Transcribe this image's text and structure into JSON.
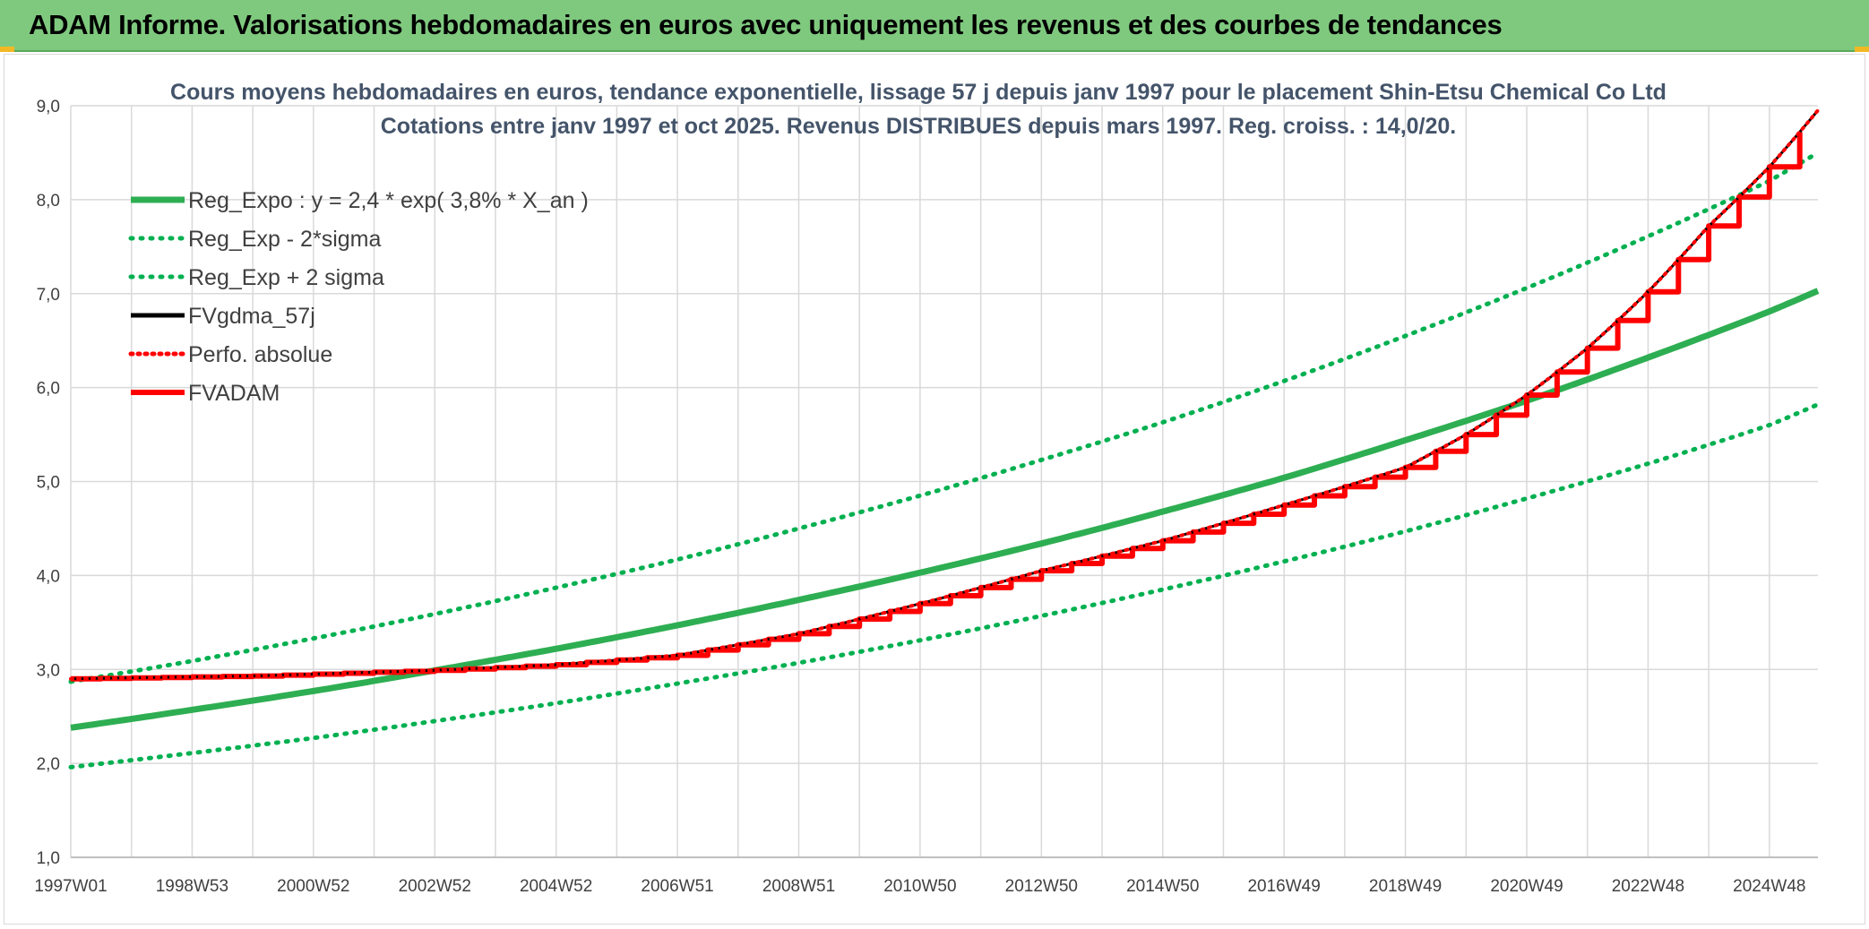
{
  "header": {
    "title": "ADAM Informe. Valorisations hebdomadaires en euros avec uniquement les revenus et des courbes de tendances"
  },
  "colors": {
    "banner": "#7fc97f",
    "green": "#00b050",
    "green_line": "#2eae52",
    "red": "#ff0000",
    "black": "#000000",
    "grid": "#d9d9d9"
  },
  "chart_data": {
    "type": "line",
    "title": "Cours moyens hebdomadaires en euros, tendance exponentielle, lissage 57 j depuis janv 1997 pour le placement Shin-Etsu Chemical Co Ltd",
    "subtitle": "Cotations entre janv 1997 et oct 2025. Revenus DISTRIBUES depuis mars 1997. Reg. croiss. : 14,0/20.",
    "xlabel": "",
    "ylabel": "",
    "ylim": [
      1.0,
      9.0
    ],
    "xlim": [
      1997.0,
      2025.8
    ],
    "yticks": [
      "1,0",
      "2,0",
      "3,0",
      "4,0",
      "5,0",
      "6,0",
      "7,0",
      "8,0",
      "9,0"
    ],
    "xticks": [
      {
        "label": "1997W01",
        "x": 1997.0
      },
      {
        "label": "1998W53",
        "x": 1999.0
      },
      {
        "label": "2000W52",
        "x": 2001.0
      },
      {
        "label": "2002W52",
        "x": 2003.0
      },
      {
        "label": "2004W52",
        "x": 2005.0
      },
      {
        "label": "2006W51",
        "x": 2007.0
      },
      {
        "label": "2008W51",
        "x": 2009.0
      },
      {
        "label": "2010W50",
        "x": 2011.0
      },
      {
        "label": "2012W50",
        "x": 2013.0
      },
      {
        "label": "2014W50",
        "x": 2015.0
      },
      {
        "label": "2016W49",
        "x": 2017.0
      },
      {
        "label": "2018W49",
        "x": 2019.0
      },
      {
        "label": "2020W49",
        "x": 2021.0
      },
      {
        "label": "2022W48",
        "x": 2023.0
      },
      {
        "label": "2024W48",
        "x": 2025.0
      }
    ],
    "grid": true,
    "legend_position": "top-left",
    "series": [
      {
        "name": "Reg_Expo : y = 2,4 * exp( 3,8% *  X_an )",
        "style": "solid",
        "color": "#2eae52",
        "x": [
          1997,
          1999,
          2001,
          2003,
          2005,
          2007,
          2009,
          2011,
          2013,
          2015,
          2017,
          2019,
          2021,
          2023,
          2025,
          2025.8
        ],
        "values": [
          2.38,
          2.57,
          2.77,
          2.99,
          3.22,
          3.47,
          3.74,
          4.03,
          4.34,
          4.68,
          5.04,
          5.44,
          5.86,
          6.32,
          6.81,
          7.03
        ]
      },
      {
        "name": "Reg_Exp - 2*sigma",
        "style": "dotted",
        "color": "#00b050",
        "x": [
          1997,
          1999,
          2001,
          2003,
          2005,
          2007,
          2009,
          2011,
          2013,
          2015,
          2017,
          2019,
          2021,
          2023,
          2025,
          2025.8
        ],
        "values": [
          1.96,
          2.11,
          2.27,
          2.45,
          2.64,
          2.85,
          3.07,
          3.31,
          3.57,
          3.85,
          4.15,
          4.47,
          4.82,
          5.19,
          5.6,
          5.82
        ]
      },
      {
        "name": "Reg_Exp + 2 sigma",
        "style": "dotted",
        "color": "#00b050",
        "x": [
          1997,
          1999,
          2001,
          2003,
          2005,
          2007,
          2009,
          2011,
          2013,
          2015,
          2017,
          2019,
          2021,
          2023,
          2025,
          2025.8
        ],
        "values": [
          2.87,
          3.09,
          3.33,
          3.59,
          3.87,
          4.17,
          4.5,
          4.85,
          5.23,
          5.63,
          6.07,
          6.55,
          7.06,
          7.61,
          8.2,
          8.5
        ]
      },
      {
        "name": "FVgdma_57j",
        "style": "solid",
        "color": "#000000",
        "x": [
          1997,
          2000,
          2003,
          2005,
          2007,
          2009,
          2011,
          2013,
          2015,
          2017,
          2019,
          2020,
          2021,
          2022,
          2023,
          2024,
          2025,
          2025.8
        ],
        "values": [
          2.9,
          2.93,
          2.99,
          3.05,
          3.15,
          3.38,
          3.7,
          4.05,
          4.37,
          4.75,
          5.15,
          5.5,
          5.92,
          6.42,
          7.02,
          7.72,
          8.35,
          8.95
        ]
      },
      {
        "name": "Perfo. absolue",
        "style": "dotted",
        "color": "#ff0000",
        "x": [
          1997,
          2000,
          2003,
          2005,
          2007,
          2009,
          2011,
          2013,
          2015,
          2017,
          2019,
          2020,
          2021,
          2022,
          2023,
          2024,
          2025,
          2025.8
        ],
        "values": [
          2.9,
          2.93,
          2.99,
          3.05,
          3.15,
          3.38,
          3.7,
          4.05,
          4.37,
          4.75,
          5.15,
          5.5,
          5.92,
          6.42,
          7.02,
          7.72,
          8.35,
          8.95
        ]
      },
      {
        "name": "FVADAM",
        "style": "solid-step",
        "color": "#ff0000",
        "x": [
          1997,
          2000,
          2003,
          2005,
          2007,
          2009,
          2011,
          2013,
          2015,
          2017,
          2019,
          2020,
          2021,
          2022,
          2023,
          2024,
          2025,
          2025.8
        ],
        "values": [
          2.9,
          2.93,
          2.99,
          3.05,
          3.15,
          3.38,
          3.7,
          4.05,
          4.37,
          4.75,
          5.15,
          5.5,
          5.92,
          6.42,
          7.02,
          7.72,
          8.35,
          8.95
        ]
      }
    ]
  }
}
